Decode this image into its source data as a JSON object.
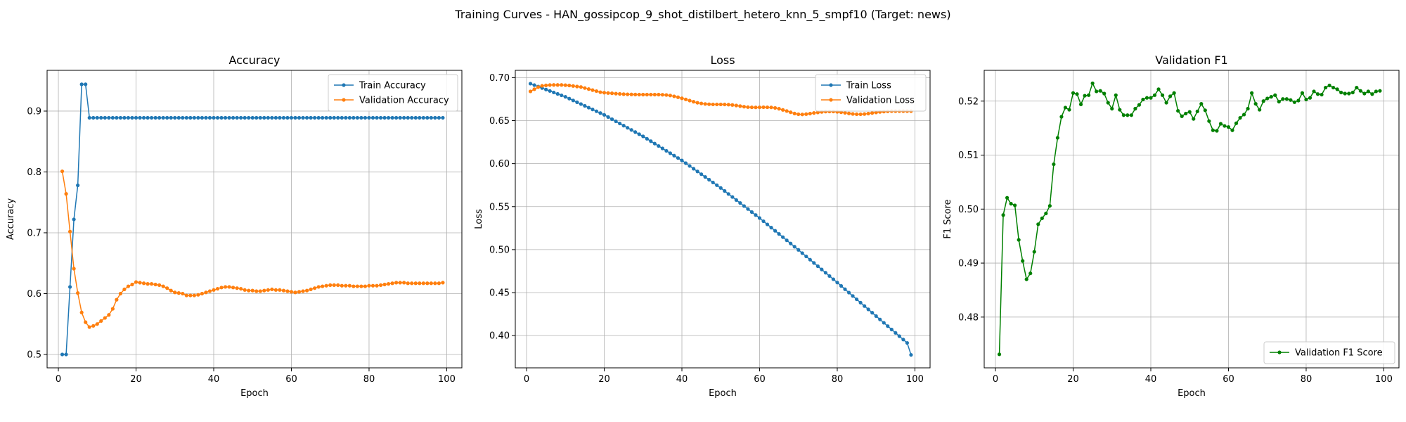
{
  "figure": {
    "suptitle": "Training Curves - HAN_gossipcop_9_shot_distilbert_hetero_knn_5_smpf10 (Target: news)"
  },
  "chart_data": [
    {
      "type": "line",
      "title": "Accuracy",
      "xlabel": "Epoch",
      "ylabel": "Accuracy",
      "xlim": [
        -2.9,
        103.9
      ],
      "ylim": [
        0.478,
        0.967
      ],
      "xticks": [
        0,
        20,
        40,
        60,
        80,
        100
      ],
      "yticks": [
        0.5,
        0.6,
        0.7,
        0.8,
        0.9
      ],
      "ytick_decimals": 1,
      "grid": true,
      "legend_position": "upper right",
      "series": [
        {
          "name": "Train Accuracy",
          "color": "#1f77b4",
          "x_start": 1,
          "values": [
            0.5,
            0.5,
            0.611,
            0.722,
            0.778,
            0.944,
            0.944,
            0.889,
            0.889,
            0.889,
            0.889,
            0.889,
            0.889,
            0.889,
            0.889,
            0.889,
            0.889,
            0.889,
            0.889,
            0.889,
            0.889,
            0.889,
            0.889,
            0.889,
            0.889,
            0.889,
            0.889,
            0.889,
            0.889,
            0.889,
            0.889,
            0.889,
            0.889,
            0.889,
            0.889,
            0.889,
            0.889,
            0.889,
            0.889,
            0.889,
            0.889,
            0.889,
            0.889,
            0.889,
            0.889,
            0.889,
            0.889,
            0.889,
            0.889,
            0.889,
            0.889,
            0.889,
            0.889,
            0.889,
            0.889,
            0.889,
            0.889,
            0.889,
            0.889,
            0.889,
            0.889,
            0.889,
            0.889,
            0.889,
            0.889,
            0.889,
            0.889,
            0.889,
            0.889,
            0.889,
            0.889,
            0.889,
            0.889,
            0.889,
            0.889,
            0.889,
            0.889,
            0.889,
            0.889,
            0.889,
            0.889,
            0.889,
            0.889,
            0.889,
            0.889,
            0.889,
            0.889,
            0.889,
            0.889,
            0.889,
            0.889,
            0.889,
            0.889,
            0.889,
            0.889,
            0.889,
            0.889,
            0.889,
            0.889
          ]
        },
        {
          "name": "Validation Accuracy",
          "color": "#ff7f0e",
          "x_start": 1,
          "values": [
            0.801,
            0.764,
            0.702,
            0.641,
            0.601,
            0.569,
            0.553,
            0.545,
            0.547,
            0.55,
            0.555,
            0.56,
            0.565,
            0.575,
            0.59,
            0.6,
            0.607,
            0.612,
            0.615,
            0.619,
            0.618,
            0.617,
            0.616,
            0.616,
            0.615,
            0.614,
            0.612,
            0.609,
            0.605,
            0.602,
            0.601,
            0.6,
            0.597,
            0.597,
            0.597,
            0.598,
            0.6,
            0.602,
            0.604,
            0.606,
            0.608,
            0.61,
            0.611,
            0.611,
            0.61,
            0.609,
            0.608,
            0.606,
            0.605,
            0.605,
            0.604,
            0.604,
            0.605,
            0.606,
            0.607,
            0.606,
            0.606,
            0.605,
            0.604,
            0.603,
            0.602,
            0.603,
            0.604,
            0.605,
            0.607,
            0.609,
            0.611,
            0.612,
            0.613,
            0.614,
            0.614,
            0.614,
            0.613,
            0.613,
            0.613,
            0.612,
            0.612,
            0.612,
            0.612,
            0.613,
            0.613,
            0.613,
            0.614,
            0.615,
            0.616,
            0.617,
            0.618,
            0.618,
            0.618,
            0.617,
            0.617,
            0.617,
            0.617,
            0.617,
            0.617,
            0.617,
            0.617,
            0.617,
            0.618
          ]
        }
      ]
    },
    {
      "type": "line",
      "title": "Loss",
      "xlabel": "Epoch",
      "ylabel": "Loss",
      "xlim": [
        -2.9,
        103.9
      ],
      "ylim": [
        0.3625,
        0.7085
      ],
      "xticks": [
        0,
        20,
        40,
        60,
        80,
        100
      ],
      "yticks": [
        0.4,
        0.45,
        0.5,
        0.55,
        0.6,
        0.65,
        0.7
      ],
      "ytick_decimals": 2,
      "grid": true,
      "legend_position": "upper right",
      "series": [
        {
          "name": "Train Loss",
          "color": "#1f77b4",
          "x_start": 1,
          "values": [
            0.693,
            0.6913,
            0.6896,
            0.6879,
            0.6862,
            0.6845,
            0.6828,
            0.6811,
            0.6794,
            0.6777,
            0.6756,
            0.6735,
            0.6714,
            0.6693,
            0.6672,
            0.6651,
            0.663,
            0.6609,
            0.6588,
            0.6567,
            0.6542,
            0.6517,
            0.6492,
            0.6467,
            0.6442,
            0.6417,
            0.6392,
            0.6367,
            0.6342,
            0.6317,
            0.6289,
            0.6261,
            0.6233,
            0.6205,
            0.6177,
            0.6149,
            0.6121,
            0.6093,
            0.6065,
            0.6037,
            0.6005,
            0.5973,
            0.5941,
            0.5909,
            0.5877,
            0.5845,
            0.5813,
            0.5781,
            0.5749,
            0.5717,
            0.5682,
            0.5647,
            0.5612,
            0.5577,
            0.5542,
            0.5507,
            0.5472,
            0.5437,
            0.5402,
            0.5367,
            0.533,
            0.5293,
            0.5256,
            0.5219,
            0.5182,
            0.5145,
            0.5108,
            0.5071,
            0.5034,
            0.4997,
            0.4959,
            0.4921,
            0.4883,
            0.4845,
            0.4807,
            0.4769,
            0.4731,
            0.4693,
            0.4655,
            0.4617,
            0.4578,
            0.4539,
            0.45,
            0.4461,
            0.4422,
            0.4383,
            0.4344,
            0.4305,
            0.4266,
            0.4227,
            0.4188,
            0.4149,
            0.411,
            0.4071,
            0.4032,
            0.3993,
            0.3954,
            0.3915,
            0.3776
          ]
        },
        {
          "name": "Validation Loss",
          "color": "#ff7f0e",
          "x_start": 1,
          "values": [
            0.684,
            0.6865,
            0.689,
            0.6905,
            0.691,
            0.6914,
            0.6915,
            0.6915,
            0.6915,
            0.6912,
            0.6909,
            0.6903,
            0.6897,
            0.6891,
            0.6879,
            0.6867,
            0.6855,
            0.6843,
            0.6831,
            0.6825,
            0.6821,
            0.6818,
            0.6814,
            0.6811,
            0.6808,
            0.6806,
            0.6805,
            0.6804,
            0.6803,
            0.6803,
            0.6803,
            0.6803,
            0.6803,
            0.6803,
            0.6801,
            0.6798,
            0.6792,
            0.6783,
            0.6772,
            0.676,
            0.6747,
            0.6733,
            0.672,
            0.6708,
            0.67,
            0.6694,
            0.6691,
            0.6689,
            0.6689,
            0.6689,
            0.6688,
            0.6686,
            0.6682,
            0.6676,
            0.6669,
            0.6662,
            0.6657,
            0.6655,
            0.6654,
            0.6655,
            0.6656,
            0.6655,
            0.6654,
            0.6648,
            0.6638,
            0.6625,
            0.6612,
            0.6597,
            0.6583,
            0.6574,
            0.6572,
            0.6576,
            0.6582,
            0.6589,
            0.6595,
            0.6601,
            0.6605,
            0.6606,
            0.6606,
            0.6602,
            0.6597,
            0.6591,
            0.6584,
            0.6578,
            0.6575,
            0.6574,
            0.6577,
            0.6582,
            0.6589,
            0.6595,
            0.6601,
            0.6605,
            0.6608,
            0.661,
            0.661,
            0.661,
            0.661,
            0.661,
            0.661
          ]
        }
      ]
    },
    {
      "type": "line",
      "title": "Validation F1",
      "xlabel": "Epoch",
      "ylabel": "F1 Score",
      "xlim": [
        -2.9,
        103.9
      ],
      "ylim": [
        0.4706,
        0.5257
      ],
      "xticks": [
        0,
        20,
        40,
        60,
        80,
        100
      ],
      "yticks": [
        0.48,
        0.49,
        0.5,
        0.51,
        0.52
      ],
      "ytick_decimals": 2,
      "grid": true,
      "legend_position": "lower right",
      "series": [
        {
          "name": "Validation F1 Score",
          "color": "#008000",
          "x_start": 1,
          "values": [
            0.4731,
            0.4989,
            0.5021,
            0.501,
            0.5007,
            0.4943,
            0.4904,
            0.487,
            0.4881,
            0.4921,
            0.4972,
            0.4983,
            0.4992,
            0.5006,
            0.5083,
            0.5132,
            0.5171,
            0.5188,
            0.5184,
            0.5215,
            0.5213,
            0.5194,
            0.521,
            0.5211,
            0.5233,
            0.5218,
            0.5219,
            0.5214,
            0.5197,
            0.5186,
            0.5211,
            0.5184,
            0.5174,
            0.5174,
            0.5174,
            0.5186,
            0.5193,
            0.5203,
            0.5206,
            0.5206,
            0.5211,
            0.5222,
            0.5211,
            0.5197,
            0.5209,
            0.5215,
            0.5182,
            0.5172,
            0.5177,
            0.518,
            0.5167,
            0.5181,
            0.5195,
            0.5183,
            0.5163,
            0.5146,
            0.5145,
            0.5158,
            0.5154,
            0.5152,
            0.5146,
            0.5159,
            0.5169,
            0.5175,
            0.5186,
            0.5215,
            0.5195,
            0.5184,
            0.52,
            0.5205,
            0.5208,
            0.5211,
            0.5199,
            0.5204,
            0.5204,
            0.5202,
            0.5198,
            0.5201,
            0.5215,
            0.5203,
            0.5206,
            0.5218,
            0.5213,
            0.5212,
            0.5225,
            0.5229,
            0.5225,
            0.5222,
            0.5216,
            0.5214,
            0.5214,
            0.5216,
            0.5225,
            0.5219,
            0.5214,
            0.5218,
            0.5213,
            0.5218,
            0.5219
          ]
        }
      ]
    }
  ]
}
